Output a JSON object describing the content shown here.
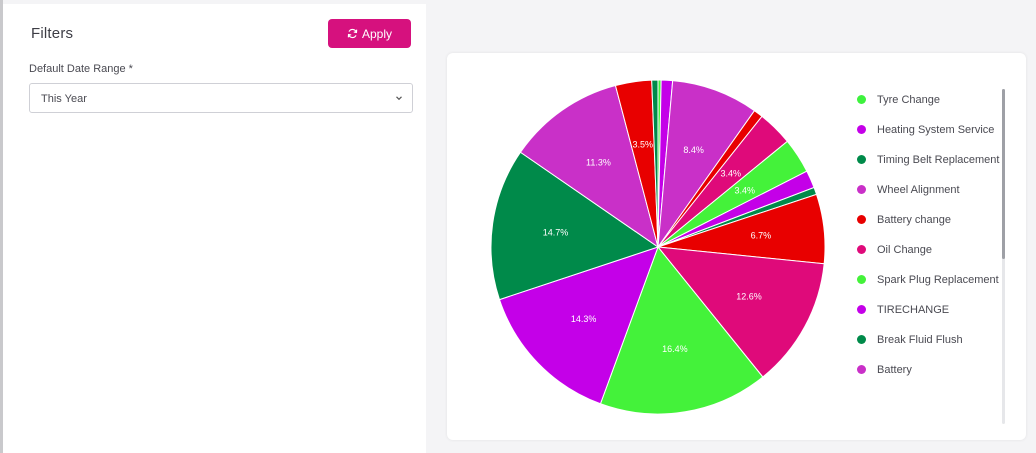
{
  "filters": {
    "title": "Filters",
    "apply_label": "Apply",
    "date_range_label": "Default Date Range *",
    "date_range_value": "This Year"
  },
  "chart_data": {
    "type": "pie",
    "slices": [
      {
        "label": "Tyre Change",
        "value": 0.3,
        "color": "#3ef23e",
        "pct_label": ""
      },
      {
        "label": "Heating System Service",
        "value": 1.1,
        "color": "#c400e8",
        "pct_label": ""
      },
      {
        "label": "Timing Belt Replacement",
        "value": 8.4,
        "color": "#c930c8",
        "pct_label": "8.4%"
      },
      {
        "label": "Wheel Alignment",
        "value": 0.9,
        "color": "#e80000",
        "pct_label": ""
      },
      {
        "label": "Battery change",
        "value": 3.4,
        "color": "#df0a7a",
        "pct_label": "3.4%"
      },
      {
        "label": "Oil Change",
        "value": 3.4,
        "color": "#44f23a",
        "pct_label": "3.4%"
      },
      {
        "label": "Spark Plug Replacement",
        "value": 1.7,
        "color": "#c400e8",
        "pct_label": ""
      },
      {
        "label": "TIRECHANGE",
        "value": 0.7,
        "color": "#008a4a",
        "pct_label": ""
      },
      {
        "label": "Break Fluid Flush",
        "value": 6.7,
        "color": "#e80000",
        "pct_label": "6.7%"
      },
      {
        "label": "Battery",
        "value": 12.6,
        "color": "#df0a7a",
        "pct_label": "12.6%"
      },
      {
        "label": "",
        "value": 16.4,
        "color": "#44f23a",
        "pct_label": "16.4%"
      },
      {
        "label": "",
        "value": 14.3,
        "color": "#c400e8",
        "pct_label": "14.3%"
      },
      {
        "label": "",
        "value": 14.7,
        "color": "#008a4a",
        "pct_label": "14.7%"
      },
      {
        "label": "",
        "value": 11.3,
        "color": "#c930c8",
        "pct_label": "11.3%"
      },
      {
        "label": "",
        "value": 3.5,
        "color": "#e80000",
        "pct_label": "3.5%"
      },
      {
        "label": "",
        "value": 0.6,
        "color": "#008a4a",
        "pct_label": ""
      }
    ],
    "legend": [
      {
        "label": "Tyre Change",
        "color": "#3ef23e"
      },
      {
        "label": "Heating System Service",
        "color": "#c400e8"
      },
      {
        "label": "Timing Belt Replacement",
        "color": "#008a4a"
      },
      {
        "label": "Wheel Alignment",
        "color": "#c930c8"
      },
      {
        "label": "Battery change",
        "color": "#e80000"
      },
      {
        "label": "Oil Change",
        "color": "#df0a7a"
      },
      {
        "label": "Spark Plug Replacement",
        "color": "#44f23a"
      },
      {
        "label": "TIRECHANGE",
        "color": "#c400e8"
      },
      {
        "label": "Break Fluid Flush",
        "color": "#008a4a"
      },
      {
        "label": "Battery",
        "color": "#c930c8"
      }
    ],
    "legend_position": "right"
  }
}
